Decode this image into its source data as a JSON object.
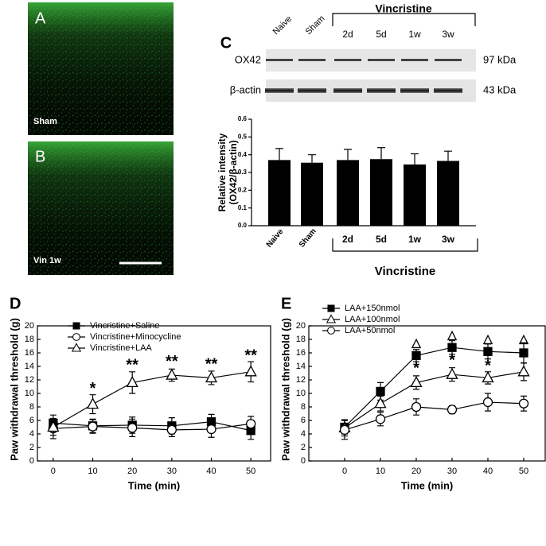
{
  "panels": [
    {
      "letter": "A",
      "label": "Sham"
    },
    {
      "letter": "B",
      "label": "Vin 1w"
    }
  ],
  "blot": {
    "lanes": [
      "Naive",
      "Sham",
      "2d",
      "5d",
      "1w",
      "3w"
    ],
    "group": "Vincristine",
    "rows": [
      {
        "name": "OX42",
        "size": "97 kDa"
      },
      {
        "name": "β-actin",
        "size": "43 kDa"
      }
    ]
  },
  "chart_data": [
    {
      "type": "bar",
      "panel": "C",
      "categories": [
        "Naive",
        "Sham",
        "2d",
        "5d",
        "1w",
        "3w"
      ],
      "values": [
        0.37,
        0.355,
        0.37,
        0.375,
        0.345,
        0.365
      ],
      "errors": [
        0.065,
        0.045,
        0.06,
        0.065,
        0.06,
        0.055
      ],
      "color": "#000000",
      "ylim": [
        0,
        0.6
      ],
      "yticks": [
        {
          "value": 0,
          "label": "0.0"
        },
        0.1,
        0.2,
        0.3,
        0.4,
        0.5,
        0.6
      ],
      "y_label": [
        "Relative intensity",
        "(OX42/β-actin)"
      ],
      "group_label": "Vincristine"
    },
    {
      "type": "line",
      "panel": "D",
      "x": [
        0,
        10,
        20,
        30,
        40,
        50
      ],
      "xlim": [
        -4,
        55
      ],
      "xticks": [
        0,
        10,
        20,
        30,
        40,
        50
      ],
      "ylim": [
        0,
        20
      ],
      "yticks": [
        0,
        2,
        4,
        6,
        8,
        10,
        12,
        14,
        16,
        18,
        20
      ],
      "x_label": "Time (min)",
      "y_label": "Paw withdrawal threshold (g)",
      "series": [
        {
          "name": "Vincristine+Saline",
          "color": "#000000",
          "marker": "square",
          "filled": true,
          "values": [
            5.6,
            5.2,
            5.3,
            5.2,
            5.8,
            4.5
          ],
          "errors": [
            1.2,
            1.0,
            1.2,
            1.2,
            1.1,
            1.3
          ]
        },
        {
          "name": "Vincristine+Minocycline",
          "color": "#000000",
          "marker": "circle",
          "filled": false,
          "values": [
            4.8,
            5.1,
            4.9,
            4.6,
            4.7,
            5.5
          ],
          "errors": [
            1.5,
            1.0,
            1.3,
            1.0,
            1.2,
            1.1
          ]
        },
        {
          "name": "Vincristine+LAA",
          "color": "#000000",
          "marker": "triangle",
          "filled": false,
          "values": [
            5.0,
            8.4,
            11.6,
            12.7,
            12.3,
            13.2
          ],
          "errors": [
            1.2,
            1.4,
            1.6,
            0.9,
            1.0,
            1.5
          ]
        }
      ],
      "annotations": [
        {
          "text": "*",
          "x": 10,
          "y": 10.6
        },
        {
          "text": "**",
          "x": 20,
          "y": 14.1
        },
        {
          "text": "**",
          "x": 30,
          "y": 14.6
        },
        {
          "text": "**",
          "x": 40,
          "y": 14.2
        },
        {
          "text": "**",
          "x": 50,
          "y": 15.5
        }
      ]
    },
    {
      "type": "line",
      "panel": "E",
      "x": [
        0,
        10,
        20,
        30,
        40,
        50
      ],
      "xlim": [
        -10,
        56
      ],
      "xticks": [
        0,
        10,
        20,
        30,
        40,
        50
      ],
      "ylim": [
        0,
        20
      ],
      "yticks": [
        0,
        2,
        4,
        6,
        8,
        10,
        12,
        14,
        16,
        18,
        20
      ],
      "x_label": "Time (min)",
      "y_label": "Paw withdrawal threshold (g)",
      "series": [
        {
          "name": "LAA+150nmol",
          "color": "#000000",
          "marker": "square",
          "filled": true,
          "values": [
            5.0,
            10.3,
            15.6,
            16.8,
            16.2,
            16.0
          ],
          "errors": [
            1.0,
            1.3,
            0.9,
            1.0,
            1.1,
            1.5
          ]
        },
        {
          "name": "LAA+100nmol",
          "color": "#000000",
          "marker": "triangle",
          "filled": false,
          "values": [
            4.9,
            8.5,
            11.6,
            12.8,
            12.3,
            13.2
          ],
          "errors": [
            1.2,
            1.1,
            1.0,
            1.0,
            0.9,
            1.3
          ]
        },
        {
          "name": "LAA+50nmol",
          "color": "#000000",
          "marker": "circle",
          "filled": false,
          "values": [
            4.6,
            6.2,
            8.0,
            7.6,
            8.7,
            8.5
          ],
          "errors": [
            1.4,
            1.0,
            1.2,
            0.6,
            1.3,
            1.1
          ]
        }
      ],
      "annotations": [
        {
          "text": "△",
          "x": 20,
          "y": 17.4
        },
        {
          "text": "△",
          "x": 30,
          "y": 18.6
        },
        {
          "text": "△",
          "x": 40,
          "y": 18.0
        },
        {
          "text": "△",
          "x": 50,
          "y": 18.0
        },
        {
          "text": "*",
          "x": 20,
          "y": 13.6
        },
        {
          "text": "*",
          "x": 30,
          "y": 14.8
        },
        {
          "text": "*",
          "x": 40,
          "y": 14.0
        }
      ]
    }
  ]
}
